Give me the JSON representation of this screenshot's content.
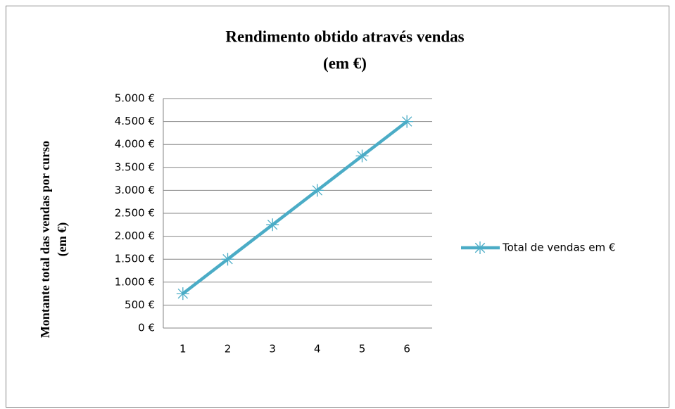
{
  "chart_data": {
    "type": "line",
    "title": [
      "Rendimento obtido através vendas",
      "(em €)"
    ],
    "y_label": [
      "Montante total das vendas por curso",
      "(em €)"
    ],
    "categories": [
      "1",
      "2",
      "3",
      "4",
      "5",
      "6"
    ],
    "series": [
      {
        "name": "Total de vendas em €",
        "color": "#4bacc6",
        "values": [
          750,
          1500,
          2250,
          3000,
          3750,
          4500
        ]
      }
    ],
    "ylim": [
      0,
      5000
    ],
    "yticks": [
      {
        "value": 0,
        "label": "0 €"
      },
      {
        "value": 500,
        "label": "500 €"
      },
      {
        "value": 1000,
        "label": "1.000 €"
      },
      {
        "value": 1500,
        "label": "1.500 €"
      },
      {
        "value": 2000,
        "label": "2.000 €"
      },
      {
        "value": 2500,
        "label": "2.500 €"
      },
      {
        "value": 3000,
        "label": "3.000 €"
      },
      {
        "value": 3500,
        "label": "3.500 €"
      },
      {
        "value": 4000,
        "label": "4.000 €"
      },
      {
        "value": 4500,
        "label": "4.500 €"
      },
      {
        "value": 5000,
        "label": "5.000 €"
      }
    ],
    "grid": true,
    "legend": "right"
  }
}
